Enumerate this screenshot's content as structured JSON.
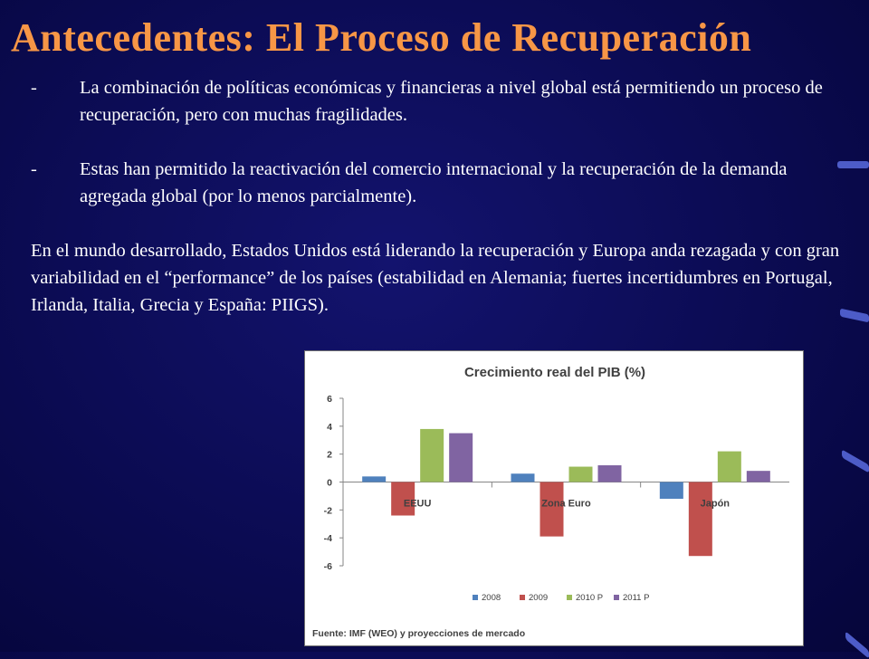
{
  "title": "Antecedentes: El Proceso de Recuperación",
  "bullets": [
    {
      "marker": "-",
      "text": "La combinación de políticas económicas y financieras a nivel global está permitiendo un proceso de recuperación, pero con muchas fragilidades."
    },
    {
      "marker": "-",
      "text": "Estas han permitido la reactivación del comercio internacional y la recuperación de la demanda agregada  global (por lo menos parcialmente)."
    }
  ],
  "paragraph": "En el mundo desarrollado, Estados Unidos está liderando la recuperación y Europa anda rezagada y con gran variabilidad en el “performance” de los países (estabilidad en Alemania; fuertes incertidumbres en Portugal, Irlanda, Italia, Grecia y España: PIIGS).",
  "colors": {
    "title": "#f79646",
    "background": "#0b0b52",
    "text": "#ffffff"
  },
  "chart_data": {
    "type": "bar",
    "title": "Crecimiento real del PIB (%)",
    "categories": [
      "EEUU",
      "Zona Euro",
      "Japón"
    ],
    "series": [
      {
        "name": "2008",
        "color": "#4f81bd",
        "values": [
          0.4,
          0.6,
          -1.2
        ]
      },
      {
        "name": "2009",
        "color": "#c0504d",
        "values": [
          -2.4,
          -3.9,
          -5.3
        ]
      },
      {
        "name": "2010 P",
        "color": "#9bbb59",
        "values": [
          3.8,
          1.1,
          2.2
        ]
      },
      {
        "name": "2011 P",
        "color": "#8064a2",
        "values": [
          3.5,
          1.2,
          0.8
        ]
      }
    ],
    "ylim": [
      -6,
      6
    ],
    "yticks": [
      6,
      4,
      2,
      0,
      -2,
      -4,
      -6
    ],
    "legend_position": "bottom",
    "source": "Fuente: IMF (WEO) y proyecciones de mercado"
  }
}
